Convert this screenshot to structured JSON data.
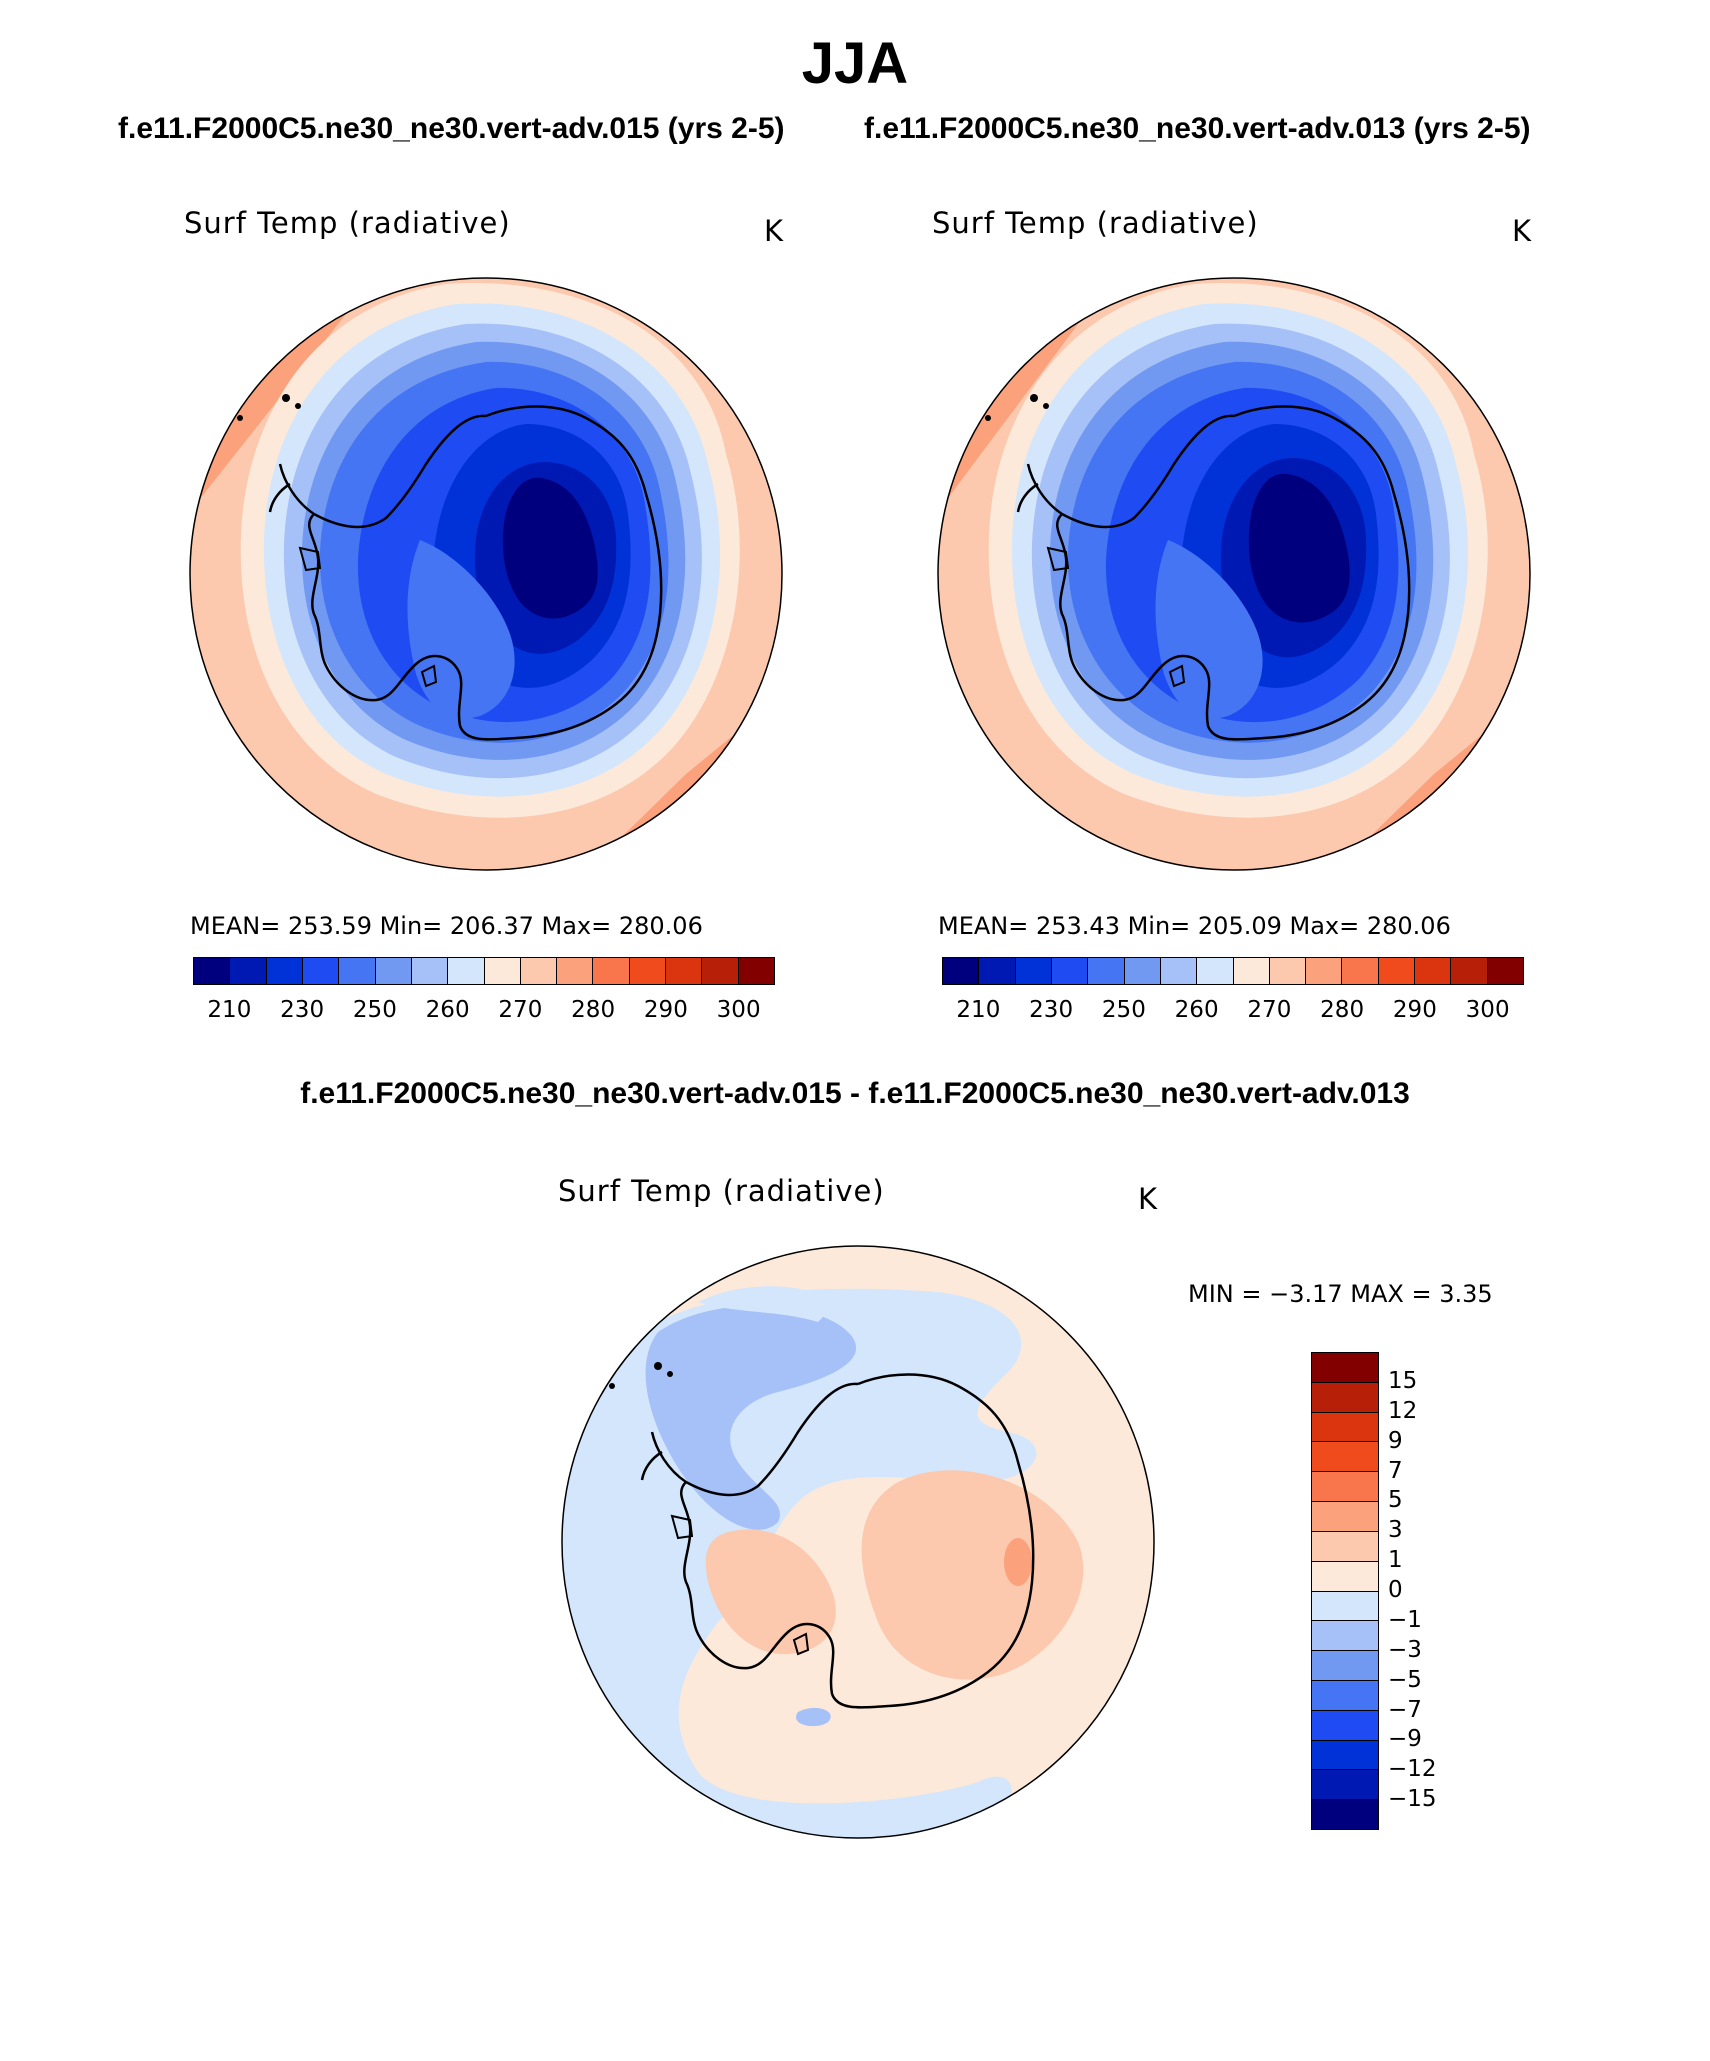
{
  "figure": {
    "season": "JJA",
    "left_case_title": "f.e11.F2000C5.ne30_ne30.vert-adv.015 (yrs 2-5)",
    "right_case_title": "f.e11.F2000C5.ne30_ne30.vert-adv.013 (yrs 2-5)",
    "diff_title": "f.e11.F2000C5.ne30_ne30.vert-adv.015 - f.e11.F2000C5.ne30_ne30.vert-adv.013"
  },
  "panels": {
    "left": {
      "variable": "Surf Temp (radiative)",
      "units": "K",
      "stats_text": "MEAN= 253.59   Min= 206.37   Max= 280.06",
      "mean": 253.59,
      "min": 206.37,
      "max": 280.06
    },
    "right": {
      "variable": "Surf Temp (radiative)",
      "units": "K",
      "stats_text": "MEAN= 253.43   Min= 205.09   Max= 280.06",
      "mean": 253.43,
      "min": 205.09,
      "max": 280.06
    },
    "diff": {
      "variable": "Surf Temp (radiative)",
      "units": "K",
      "minmax_text": "MIN =   −3.17  MAX =    3.35",
      "min": -3.17,
      "max": 3.35
    }
  },
  "colorbars": {
    "absolute": {
      "colors": [
        "#00007f",
        "#0019b2",
        "#0032d8",
        "#1f4cf2",
        "#4575f2",
        "#7299f2",
        "#a6c1f7",
        "#d4e6fc",
        "#fde9da",
        "#fcc8ae",
        "#fba17c",
        "#f9764d",
        "#f04b1c",
        "#db3510",
        "#b71f08",
        "#820000"
      ],
      "tick_labels": [
        "210",
        "230",
        "250",
        "260",
        "270",
        "280",
        "290",
        "300"
      ]
    },
    "difference": {
      "colors": [
        "#820000",
        "#b71f08",
        "#db3510",
        "#f04b1c",
        "#f9764d",
        "#fba17c",
        "#fcc8ae",
        "#fde9da",
        "#d4e6fc",
        "#a6c1f7",
        "#7299f2",
        "#4575f2",
        "#1f4cf2",
        "#0032d8",
        "#0019b2",
        "#00007f"
      ],
      "tick_labels": [
        "15",
        "12",
        "9",
        "7",
        "5",
        "3",
        "1",
        "0",
        "−1",
        "−3",
        "−5",
        "−7",
        "−9",
        "−12",
        "−15"
      ]
    }
  }
}
